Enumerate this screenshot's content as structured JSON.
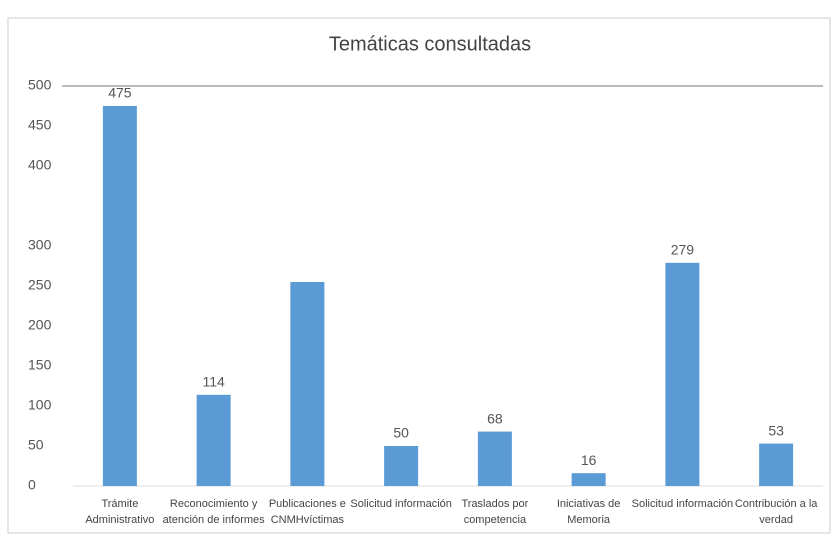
{
  "chart_data": {
    "type": "bar",
    "title": "Temáticas consultadas",
    "categories": [
      "Trámite Administrativo",
      "Reconocimiento y atención de informes",
      "Publicaciones e CNMHvíctimas",
      "Solicitud información",
      "Traslados por competencia",
      "Iniciativas de Memoria",
      "Solicitud información",
      "Contribución a la verdad"
    ],
    "values": [
      475,
      114,
      255,
      50,
      68,
      16,
      279,
      53
    ],
    "value_labels": [
      "475",
      "114",
      null,
      "50",
      "68",
      "16",
      "279",
      "53"
    ],
    "color": "#5b9bd5",
    "ylim": [
      0,
      500
    ],
    "yticks": [
      0,
      50,
      100,
      150,
      200,
      250,
      300,
      400,
      450,
      500
    ],
    "grid": false
  }
}
